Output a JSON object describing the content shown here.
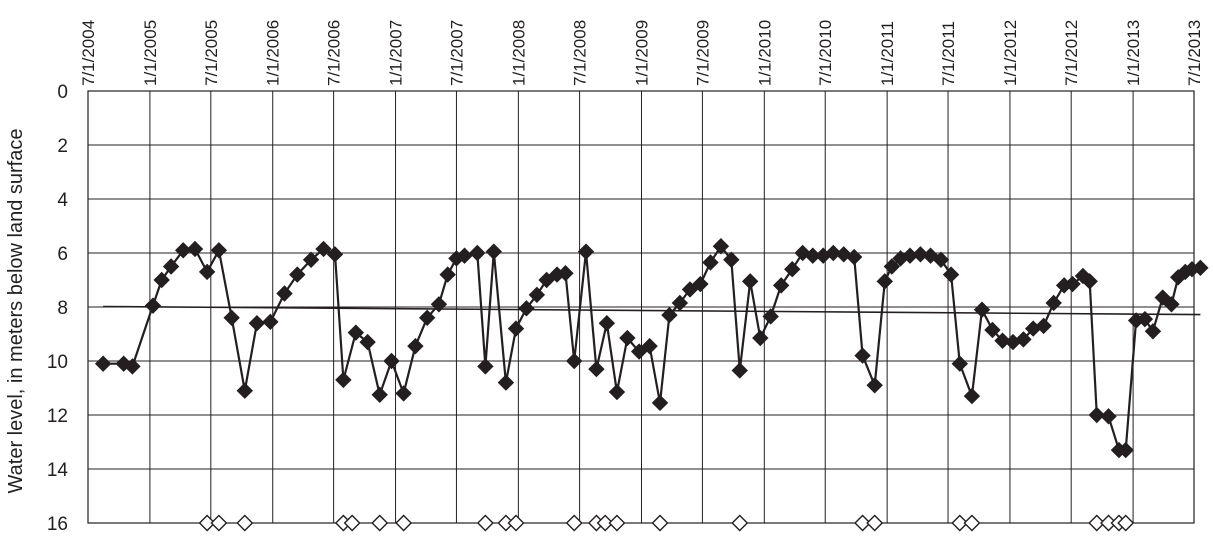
{
  "chart_data": {
    "type": "scatter",
    "title": "",
    "xlabel": "",
    "ylabel": "Water level, in meters below land surface",
    "y_inverted": true,
    "ylim": [
      0,
      16
    ],
    "yticks": [
      0,
      2,
      4,
      6,
      8,
      10,
      12,
      14,
      16
    ],
    "xlim": [
      "2004-07-01",
      "2013-07-01"
    ],
    "xticks": [
      "7/1/2004",
      "1/1/2005",
      "7/1/2005",
      "1/1/2006",
      "7/1/2006",
      "1/1/2007",
      "7/1/2007",
      "1/1/2008",
      "7/1/2008",
      "1/1/2009",
      "7/1/2009",
      "1/1/2010",
      "7/1/2010",
      "1/1/2011",
      "7/1/2011",
      "1/1/2012",
      "7/1/2012",
      "1/1/2013",
      "7/1/2013"
    ],
    "x_axis_position": "top",
    "x_tick_rotation": -90,
    "grid": true,
    "legend": "none",
    "colors": {
      "series": "#231f20",
      "grid": "#231f20",
      "background": "#ffffff"
    },
    "series": [
      {
        "style": "line-marker",
        "marker": "filled-diamond",
        "points": [
          [
            "2004-08-15",
            10.1
          ],
          [
            "2004-10-15",
            10.1
          ],
          [
            "2004-11-10",
            10.2
          ],
          [
            "2005-01-10",
            7.95
          ],
          [
            "2005-02-05",
            7.0
          ],
          [
            "2005-03-05",
            6.5
          ],
          [
            "2005-04-10",
            5.9
          ],
          [
            "2005-05-15",
            5.85
          ],
          [
            "2005-06-20",
            6.7
          ],
          [
            "2005-07-25",
            5.9
          ],
          [
            "2005-09-01",
            8.4
          ],
          [
            "2005-10-10",
            11.1
          ],
          [
            "2005-11-15",
            8.6
          ],
          [
            "2005-12-25",
            8.55
          ],
          [
            "2006-02-05",
            7.5
          ],
          [
            "2006-03-15",
            6.8
          ],
          [
            "2006-04-25",
            6.25
          ],
          [
            "2006-06-01",
            5.85
          ],
          [
            "2006-07-05",
            6.05
          ],
          [
            "2006-07-30",
            10.7
          ],
          [
            "2006-09-05",
            8.95
          ],
          [
            "2006-10-10",
            9.3
          ],
          [
            "2006-11-15",
            11.25
          ],
          [
            "2006-12-20",
            10.0
          ],
          [
            "2007-01-25",
            11.2
          ],
          [
            "2007-03-01",
            9.45
          ],
          [
            "2007-04-05",
            8.4
          ],
          [
            "2007-05-10",
            7.9
          ],
          [
            "2007-06-05",
            6.8
          ],
          [
            "2007-07-01",
            6.2
          ],
          [
            "2007-07-25",
            6.1
          ],
          [
            "2007-09-01",
            6.0
          ],
          [
            "2007-09-25",
            10.2
          ],
          [
            "2007-10-20",
            5.95
          ],
          [
            "2007-11-25",
            10.8
          ],
          [
            "2007-12-25",
            8.8
          ],
          [
            "2008-01-25",
            8.05
          ],
          [
            "2008-02-25",
            7.55
          ],
          [
            "2008-03-25",
            7.0
          ],
          [
            "2008-04-25",
            6.8
          ],
          [
            "2008-05-20",
            6.75
          ],
          [
            "2008-06-15",
            10.0
          ],
          [
            "2008-07-20",
            5.95
          ],
          [
            "2008-08-20",
            10.3
          ],
          [
            "2008-09-20",
            8.6
          ],
          [
            "2008-10-20",
            11.15
          ],
          [
            "2008-11-20",
            9.15
          ],
          [
            "2008-12-25",
            9.65
          ],
          [
            "2009-01-25",
            9.45
          ],
          [
            "2009-02-25",
            11.55
          ],
          [
            "2009-03-25",
            8.3
          ],
          [
            "2009-04-25",
            7.85
          ],
          [
            "2009-05-25",
            7.35
          ],
          [
            "2009-06-25",
            7.15
          ],
          [
            "2009-07-25",
            6.35
          ],
          [
            "2009-08-25",
            5.75
          ],
          [
            "2009-09-25",
            6.25
          ],
          [
            "2009-10-20",
            10.35
          ],
          [
            "2009-11-20",
            7.05
          ],
          [
            "2009-12-20",
            9.15
          ],
          [
            "2010-01-20",
            8.35
          ],
          [
            "2010-02-20",
            7.2
          ],
          [
            "2010-03-25",
            6.6
          ],
          [
            "2010-04-25",
            6.0
          ],
          [
            "2010-05-25",
            6.1
          ],
          [
            "2010-06-25",
            6.1
          ],
          [
            "2010-07-25",
            6.0
          ],
          [
            "2010-08-25",
            6.05
          ],
          [
            "2010-09-25",
            6.15
          ],
          [
            "2010-10-20",
            9.8
          ],
          [
            "2010-11-25",
            10.9
          ],
          [
            "2010-12-25",
            7.05
          ],
          [
            "2011-01-15",
            6.5
          ],
          [
            "2011-02-10",
            6.2
          ],
          [
            "2011-03-10",
            6.1
          ],
          [
            "2011-04-10",
            6.05
          ],
          [
            "2011-05-10",
            6.1
          ],
          [
            "2011-06-10",
            6.25
          ],
          [
            "2011-07-10",
            6.8
          ],
          [
            "2011-08-05",
            10.1
          ],
          [
            "2011-09-10",
            11.3
          ],
          [
            "2011-10-10",
            8.1
          ],
          [
            "2011-11-10",
            8.85
          ],
          [
            "2011-12-10",
            9.25
          ],
          [
            "2012-01-10",
            9.3
          ],
          [
            "2012-02-10",
            9.2
          ],
          [
            "2012-03-10",
            8.8
          ],
          [
            "2012-04-10",
            8.7
          ],
          [
            "2012-05-10",
            7.85
          ],
          [
            "2012-06-10",
            7.2
          ],
          [
            "2012-07-05",
            7.15
          ],
          [
            "2012-08-05",
            6.85
          ],
          [
            "2012-08-25",
            7.05
          ],
          [
            "2012-09-15",
            12.0
          ],
          [
            "2012-10-20",
            12.05
          ],
          [
            "2012-11-20",
            13.3
          ],
          [
            "2012-12-10",
            13.3
          ],
          [
            "2013-01-10",
            8.5
          ],
          [
            "2013-02-05",
            8.45
          ],
          [
            "2013-03-01",
            8.9
          ],
          [
            "2013-03-30",
            7.65
          ],
          [
            "2013-04-25",
            7.9
          ],
          [
            "2013-05-15",
            6.9
          ],
          [
            "2013-06-05",
            6.7
          ],
          [
            "2013-06-25",
            6.6
          ],
          [
            "2013-07-20",
            6.55
          ]
        ]
      },
      {
        "style": "line",
        "marker": "none",
        "points": [
          [
            "2004-08-15",
            7.98
          ],
          [
            "2013-07-20",
            8.28
          ]
        ]
      },
      {
        "style": "marker",
        "marker": "open-diamond",
        "points": [
          [
            "2005-06-20",
            16
          ],
          [
            "2005-07-25",
            16
          ],
          [
            "2005-10-10",
            16
          ],
          [
            "2006-07-30",
            16
          ],
          [
            "2006-08-25",
            16
          ],
          [
            "2006-11-15",
            16
          ],
          [
            "2007-01-25",
            16
          ],
          [
            "2007-09-25",
            16
          ],
          [
            "2007-11-25",
            16
          ],
          [
            "2007-12-25",
            16
          ],
          [
            "2008-06-15",
            16
          ],
          [
            "2008-08-20",
            16
          ],
          [
            "2008-09-15",
            16
          ],
          [
            "2008-10-20",
            16
          ],
          [
            "2009-02-25",
            16
          ],
          [
            "2009-10-20",
            16
          ],
          [
            "2010-10-20",
            16
          ],
          [
            "2010-11-25",
            16
          ],
          [
            "2011-08-05",
            16
          ],
          [
            "2011-09-10",
            16
          ],
          [
            "2012-09-15",
            16
          ],
          [
            "2012-10-20",
            16
          ],
          [
            "2012-11-20",
            16
          ],
          [
            "2012-12-10",
            16
          ]
        ]
      }
    ]
  }
}
